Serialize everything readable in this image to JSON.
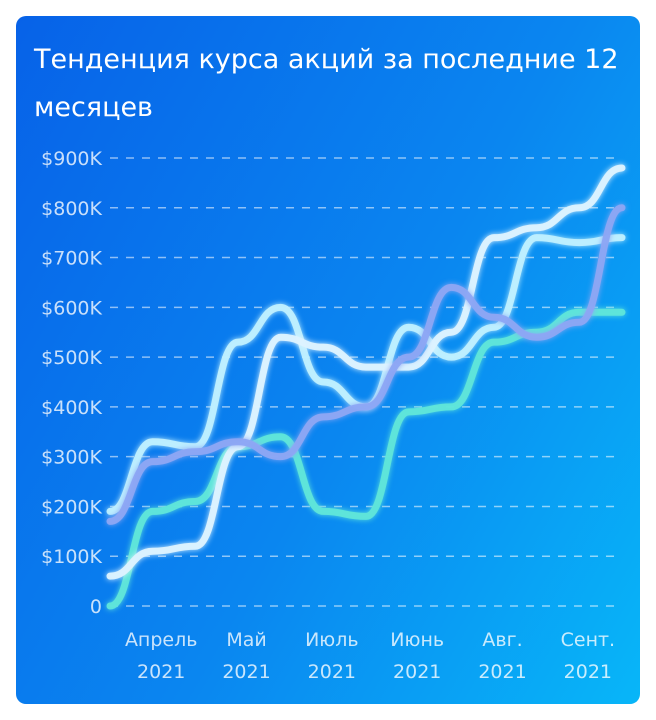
{
  "chart_data": {
    "type": "line",
    "title": "Тенденция курса акций за последние 12 месяцев",
    "xlabel": "",
    "ylabel": "",
    "ylim": [
      0,
      900000
    ],
    "y_ticks": [
      {
        "value": 0,
        "label": "0"
      },
      {
        "value": 100000,
        "label": "$100K"
      },
      {
        "value": 200000,
        "label": "$200K"
      },
      {
        "value": 300000,
        "label": "$300K"
      },
      {
        "value": 400000,
        "label": "$400K"
      },
      {
        "value": 500000,
        "label": "$500K"
      },
      {
        "value": 600000,
        "label": "$600K"
      },
      {
        "value": 700000,
        "label": "$700K"
      },
      {
        "value": 800000,
        "label": "$800K"
      },
      {
        "value": 900000,
        "label": "$900K"
      }
    ],
    "x_ticks": [
      {
        "label": [
          "Апрель",
          "2021"
        ],
        "x": 1.2
      },
      {
        "label": [
          "Май",
          "2021"
        ],
        "x": 3.2
      },
      {
        "label": [
          "Июль",
          "2021"
        ],
        "x": 5.2
      },
      {
        "label": [
          "Июнь",
          "2021"
        ],
        "x": 7.2
      },
      {
        "label": [
          "Авг.",
          "2021"
        ],
        "x": 9.2
      },
      {
        "label": [
          "Сент.",
          "2021"
        ],
        "x": 11.2
      }
    ],
    "grid": "horizontal dashed",
    "series": [
      {
        "color": "#5fe6da",
        "x": [
          0,
          1,
          2,
          3,
          4,
          5,
          6,
          7,
          8,
          9,
          10,
          11,
          12
        ],
        "values": [
          0,
          190000,
          210000,
          320000,
          340000,
          190000,
          180000,
          390000,
          400000,
          530000,
          550000,
          590000,
          590000
        ]
      },
      {
        "color": "#bff0ff",
        "x": [
          0,
          1,
          2,
          3,
          4,
          5,
          6,
          7,
          8,
          9,
          10,
          11,
          12
        ],
        "values": [
          190000,
          330000,
          320000,
          530000,
          600000,
          450000,
          400000,
          560000,
          500000,
          560000,
          740000,
          730000,
          740000
        ]
      },
      {
        "color": "#ddf3ff",
        "x": [
          0,
          1,
          2,
          3,
          4,
          5,
          6,
          7,
          8,
          9,
          10,
          11,
          12
        ],
        "values": [
          60000,
          110000,
          120000,
          320000,
          540000,
          520000,
          480000,
          480000,
          550000,
          740000,
          760000,
          800000,
          880000
        ]
      },
      {
        "color": "#8da6f4",
        "x": [
          0,
          1,
          2,
          3,
          4,
          5,
          6,
          7,
          8,
          9,
          10,
          11,
          12
        ],
        "values": [
          170000,
          290000,
          310000,
          330000,
          300000,
          380000,
          400000,
          500000,
          640000,
          580000,
          540000,
          570000,
          800000
        ]
      }
    ]
  }
}
